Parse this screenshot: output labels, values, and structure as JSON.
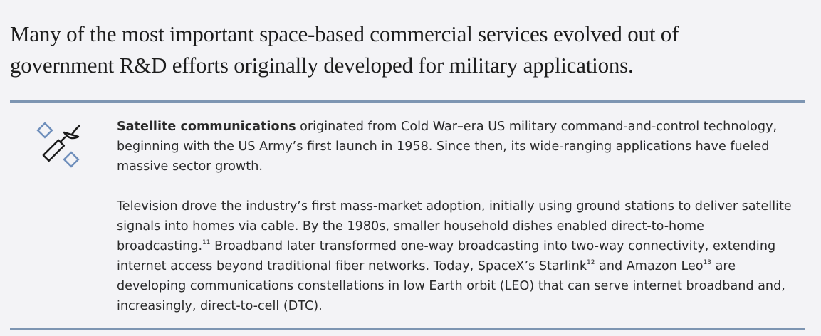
{
  "title": "Many of the most important space-based commercial services evolved out of government R&D efforts originally developed for military applications.",
  "section": {
    "paragraphs": [
      [
        {
          "style": "bold",
          "text": "Satellite communications"
        },
        {
          "style": "plain",
          "text": " originated from Cold War–era US military command-and-control technology, beginning with the US Army’s first launch in 1958. Since then, its wide-ranging applications have fueled massive sector growth."
        }
      ],
      [
        {
          "style": "plain",
          "text": "Television drove the industry’s first mass-market adoption, initially using ground stations to deliver satellite signals into homes via cable. By the 1980s, smaller household dishes enabled direct-to-home broadcasting."
        },
        {
          "style": "sup",
          "text": "11"
        },
        {
          "style": "plain",
          "text": " Broadband later transformed one-way broadcasting into two-way connectivity, extending internet access beyond traditional fiber networks. Today, SpaceX’s Starlink"
        },
        {
          "style": "sup",
          "text": "12"
        },
        {
          "style": "plain",
          "text": " and Amazon Leo"
        },
        {
          "style": "sup",
          "text": "13"
        },
        {
          "style": "plain",
          "text": " are developing communications constellations in low Earth orbit (LEO) that can serve internet broadband and, increasingly, direct-to-cell (DTC)."
        }
      ]
    ]
  }
}
